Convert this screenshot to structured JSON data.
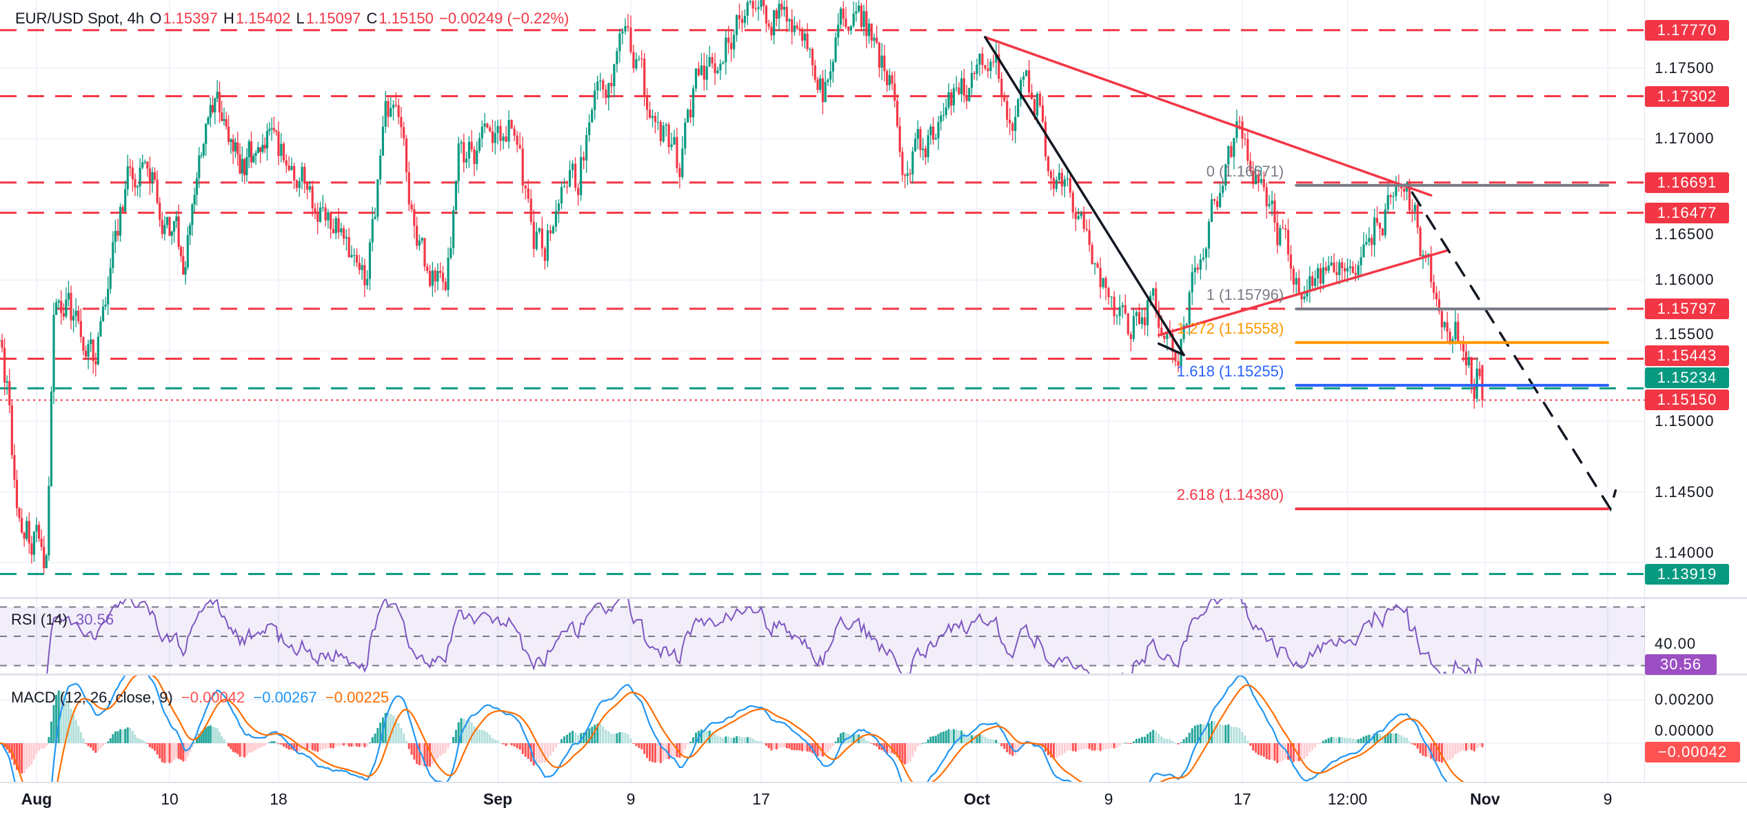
{
  "header": {
    "symbol": "EUR/USD Spot, 4h",
    "o_label": "O",
    "o_value": "1.15397",
    "h_label": "H",
    "h_value": "1.15402",
    "l_label": "L",
    "l_value": "1.15097",
    "c_label": "C",
    "c_value": "1.15150",
    "change": "−0.00249 (−0.22%)"
  },
  "chart_data": {
    "type": "candlestick",
    "interval": "4h",
    "colors": {
      "up": "#089981",
      "down": "#f23645",
      "rsi": "#7e57c2",
      "macd": "#2196f3",
      "signal": "#ff6d00",
      "hist_up": "#26a69a",
      "hist_up_light": "#b2dfdb",
      "hist_down": "#ff5252",
      "hist_down_light": "#ffcdd2"
    },
    "last_bar": {
      "open": 1.15397,
      "high": 1.15402,
      "low": 1.15097,
      "close": 1.1515
    },
    "price_path": [
      [
        "2025-07-29 12:00",
        1.1546
      ],
      [
        "2025-07-30 00:00",
        1.1522
      ],
      [
        "2025-07-30 16:00",
        1.1428
      ],
      [
        "2025-07-31 20:00",
        1.142
      ],
      [
        "2025-08-01 16:00",
        1.14
      ],
      [
        "2025-08-02 04:00",
        1.1577
      ],
      [
        "2025-08-03 00:00",
        1.1585
      ],
      [
        "2025-08-04 20:00",
        1.1546
      ],
      [
        "2025-08-06 00:00",
        1.16
      ],
      [
        "2025-08-07 04:00",
        1.168
      ],
      [
        "2025-08-08 16:00",
        1.167
      ],
      [
        "2025-08-11 00:00",
        1.1617
      ],
      [
        "2025-08-12 16:00",
        1.1704
      ],
      [
        "2025-08-13 20:00",
        1.172
      ],
      [
        "2025-08-15 00:00",
        1.168
      ],
      [
        "2025-08-17 04:00",
        1.17
      ],
      [
        "2025-08-19 00:00",
        1.168
      ],
      [
        "2025-08-20 12:00",
        1.165
      ],
      [
        "2025-08-21 12:00",
        1.164
      ],
      [
        "2025-08-23 16:00",
        1.159
      ],
      [
        "2025-08-24 20:00",
        1.1728
      ],
      [
        "2025-08-25 20:00",
        1.17
      ],
      [
        "2025-08-26 20:00",
        1.1617
      ],
      [
        "2025-08-28 16:00",
        1.159
      ],
      [
        "2025-08-29 12:00",
        1.1688
      ],
      [
        "2025-08-30 20:00",
        1.1695
      ],
      [
        "2025-08-31 20:00",
        1.1704
      ],
      [
        "2025-09-01 20:00",
        1.171
      ],
      [
        "2025-09-03 04:00",
        1.163
      ],
      [
        "2025-09-03 20:00",
        1.1625
      ],
      [
        "2025-09-04 12:00",
        1.165
      ],
      [
        "2025-09-05 20:00",
        1.167
      ],
      [
        "2025-09-06 20:00",
        1.1735
      ],
      [
        "2025-09-07 20:00",
        1.175
      ],
      [
        "2025-09-08 20:00",
        1.177
      ],
      [
        "2025-09-09 12:00",
        1.175
      ],
      [
        "2025-09-10 08:00",
        1.1708
      ],
      [
        "2025-09-11 08:00",
        1.17
      ],
      [
        "2025-09-12 00:00",
        1.168
      ],
      [
        "2025-09-13 00:00",
        1.1743
      ],
      [
        "2025-09-14 00:00",
        1.175
      ],
      [
        "2025-09-15 00:00",
        1.177
      ],
      [
        "2025-09-16 00:00",
        1.18
      ],
      [
        "2025-09-17 12:00",
        1.179
      ],
      [
        "2025-09-18 20:00",
        1.179
      ],
      [
        "2025-09-19 12:00",
        1.1767
      ],
      [
        "2025-09-21 00:00",
        1.1735
      ],
      [
        "2025-09-22 00:00",
        1.1783
      ],
      [
        "2025-09-23 04:00",
        1.18
      ],
      [
        "2025-09-24 16:00",
        1.176
      ],
      [
        "2025-09-25 12:00",
        1.1735
      ],
      [
        "2025-09-26 04:00",
        1.167
      ],
      [
        "2025-09-27 12:00",
        1.1695
      ],
      [
        "2025-09-28 16:00",
        1.171
      ],
      [
        "2025-09-30 20:00",
        1.175
      ],
      [
        "2025-10-01 12:00",
        1.1767
      ],
      [
        "2025-10-02 12:00",
        1.1743
      ],
      [
        "2025-10-03 04:00",
        1.171
      ],
      [
        "2025-10-03 20:00",
        1.1735
      ],
      [
        "2025-10-04 20:00",
        1.1728
      ],
      [
        "2025-10-05 12:00",
        1.167
      ],
      [
        "2025-10-06 20:00",
        1.1656
      ],
      [
        "2025-10-07 20:00",
        1.1617
      ],
      [
        "2025-10-09 08:00",
        1.1585
      ],
      [
        "2025-10-10 00:00",
        1.1561
      ],
      [
        "2025-10-10 16:00",
        1.157
      ],
      [
        "2025-10-11 16:00",
        1.1585
      ],
      [
        "2025-10-12 08:00",
        1.1561
      ],
      [
        "2025-10-13 04:00",
        1.1547
      ],
      [
        "2025-10-14 00:00",
        1.1605
      ],
      [
        "2025-10-15 00:00",
        1.164
      ],
      [
        "2025-10-16 00:00",
        1.168
      ],
      [
        "2025-10-16 20:00",
        1.171
      ],
      [
        "2025-10-17 08:00",
        1.1688
      ],
      [
        "2025-10-18 16:00",
        1.1652
      ],
      [
        "2025-10-20 00:00",
        1.1613
      ],
      [
        "2025-10-21 00:00",
        1.1589
      ],
      [
        "2025-10-22 00:00",
        1.16
      ],
      [
        "2025-10-22 20:00",
        1.1597
      ],
      [
        "2025-10-23 20:00",
        1.1617
      ],
      [
        "2025-10-24 20:00",
        1.164
      ],
      [
        "2025-10-25 20:00",
        1.1652
      ],
      [
        "2025-10-27 00:00",
        1.166
      ],
      [
        "2025-10-27 12:00",
        1.165
      ],
      [
        "2025-10-28 08:00",
        1.161
      ],
      [
        "2025-10-29 00:00",
        1.159
      ],
      [
        "2025-10-29 16:00",
        1.1565
      ],
      [
        "2025-10-30 16:00",
        1.1561
      ],
      [
        "2025-10-31 08:00",
        1.153
      ],
      [
        "2025-10-31 16:00",
        1.154
      ]
    ],
    "y_ticks": [
      "1.14000",
      "1.14500",
      "1.15000",
      "1.15500",
      "1.16000",
      "1.16500",
      "1.17000",
      "1.17500"
    ],
    "x_ticks": [
      {
        "label": "Aug",
        "date": "2025-08-01 00:00",
        "bold": true
      },
      {
        "label": "10",
        "date": "2025-08-10 00:00",
        "bold": false
      },
      {
        "label": "18",
        "date": "2025-08-18 00:00",
        "bold": false
      },
      {
        "label": "Sep",
        "date": "2025-09-01 00:00",
        "bold": true
      },
      {
        "label": "9",
        "date": "2025-09-09 00:00",
        "bold": false
      },
      {
        "label": "17",
        "date": "2025-09-17 00:00",
        "bold": false
      },
      {
        "label": "Oct",
        "date": "2025-10-01 00:00",
        "bold": true
      },
      {
        "label": "9",
        "date": "2025-10-09 00:00",
        "bold": false
      },
      {
        "label": "17",
        "date": "2025-10-17 00:00",
        "bold": false
      },
      {
        "label": "12:00",
        "date": "2025-10-23 12:00",
        "bold": false
      },
      {
        "label": "Nov",
        "date": "2025-11-01 00:00",
        "bold": true
      },
      {
        "label": "9",
        "date": "2025-11-09 00:00",
        "bold": false
      }
    ],
    "levels": [
      {
        "label": "1.17770",
        "price": 1.1777,
        "color": "#f23645",
        "style": "dashed"
      },
      {
        "label": "1.17302",
        "price": 1.17302,
        "color": "#f23645",
        "style": "dashed"
      },
      {
        "label": "1.16691",
        "price": 1.16691,
        "color": "#f23645",
        "style": "dashed"
      },
      {
        "label": "1.16477",
        "price": 1.16477,
        "color": "#f23645",
        "style": "dashed"
      },
      {
        "label": "1.15797",
        "price": 1.15797,
        "color": "#f23645",
        "style": "dashed"
      },
      {
        "label": "1.15443",
        "price": 1.15443,
        "color": "#f23645",
        "style": "dashed"
      },
      {
        "label": "1.15234",
        "price": 1.15234,
        "color": "#089981",
        "style": "dashed"
      },
      {
        "label": "1.13919",
        "price": 1.13919,
        "color": "#089981",
        "style": "dashed"
      },
      {
        "label": "1.15150",
        "price": 1.1515,
        "color": "#f23645",
        "style": "dotted"
      }
    ],
    "fibonacci": {
      "start": "2025-10-20 08:00",
      "end": "2025-11-09 00:00",
      "levels": [
        {
          "label": "0 (1.16671)",
          "price": 1.16671,
          "color": "#787b86"
        },
        {
          "label": "1 (1.15796)",
          "price": 1.15796,
          "color": "#787b86"
        },
        {
          "label": "1.272 (1.15558)",
          "price": 1.15558,
          "color": "#ff9800"
        },
        {
          "label": "1.618 (1.15255)",
          "price": 1.15255,
          "color": "#2962ff"
        },
        {
          "label": "2.618 (1.14380)",
          "price": 1.1438,
          "color": "#f23645"
        }
      ]
    },
    "trendlines": [
      {
        "color": "#f23645",
        "dash": false,
        "points": [
          [
            "2025-10-01 12:00",
            1.1772
          ],
          [
            "2025-10-28 16:00",
            1.166
          ]
        ]
      },
      {
        "color": "#f23645",
        "dash": false,
        "points": [
          [
            "2025-10-12 00:00",
            1.1561
          ],
          [
            "2025-10-29 16:00",
            1.1621
          ]
        ]
      },
      {
        "color": "#131722",
        "dash": false,
        "points": [
          [
            "2025-10-01 12:00",
            1.1772
          ],
          [
            "2025-10-13 12:00",
            1.1547
          ]
        ]
      },
      {
        "color": "#131722",
        "dash": false,
        "points": [
          [
            "2025-10-12 00:00",
            1.1555
          ],
          [
            "2025-10-13 12:00",
            1.1547
          ]
        ]
      },
      {
        "color": "#131722",
        "dash": true,
        "points": [
          [
            "2025-10-27 12:00",
            1.1662
          ],
          [
            "2025-11-09 04:00",
            1.1438
          ],
          [
            "2025-11-09 12:00",
            1.1451
          ]
        ]
      }
    ],
    "rsi": {
      "label": "RSI (14)",
      "value": "30.56",
      "ticks": [
        "40.00"
      ],
      "bands": [
        70,
        50,
        30
      ]
    },
    "macd": {
      "label": "MACD (12, 26, close, 9)",
      "hist": "−0.00042",
      "macd": "−0.00267",
      "signal": "−0.00225",
      "ticks": [
        "0.00200",
        "0.00000"
      ],
      "axis_value": "−0.00042"
    }
  }
}
